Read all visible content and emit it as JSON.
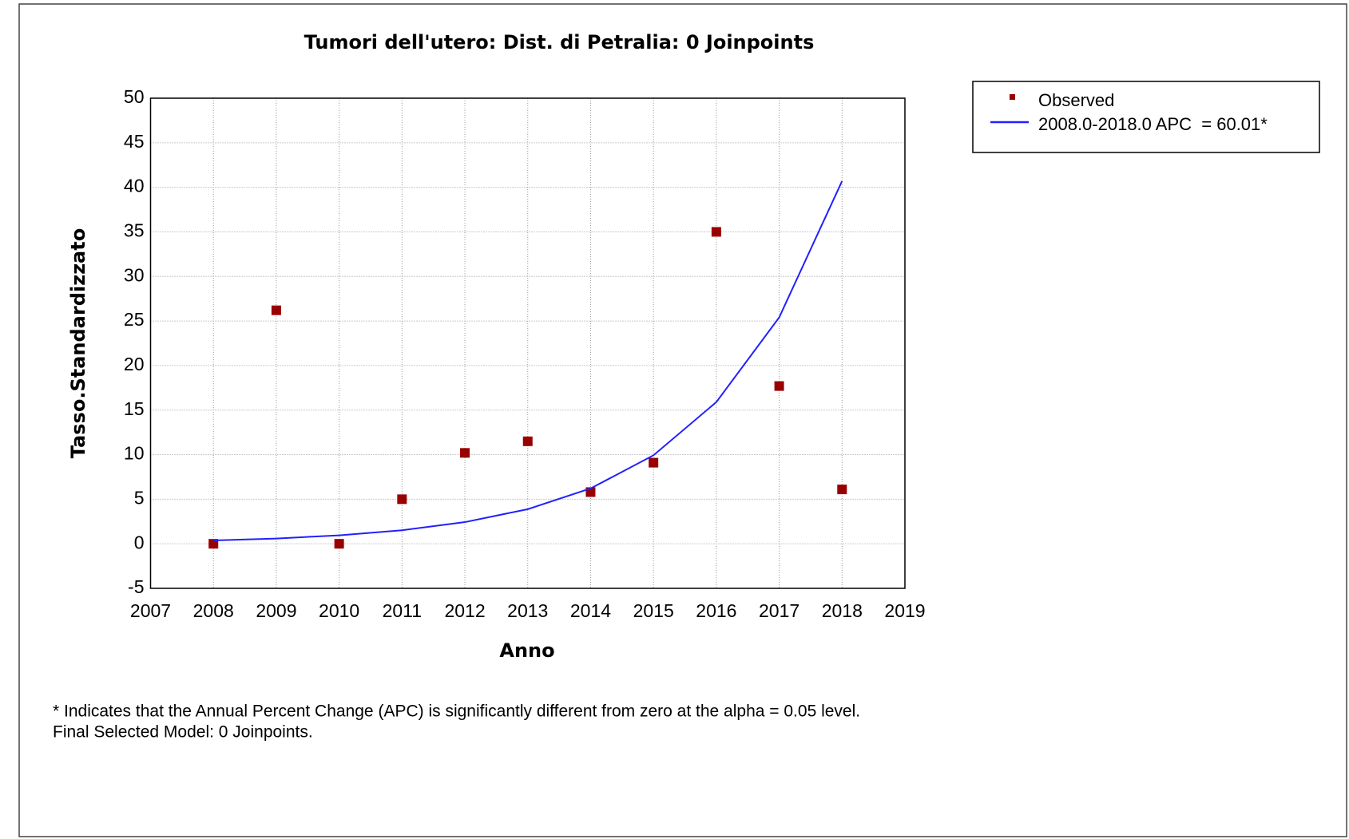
{
  "chart_data": {
    "type": "line",
    "title": "Tumori dell'utero: Dist. di Petralia: 0 Joinpoints",
    "xlabel": "Anno",
    "ylabel": "Tasso.Standardizzato",
    "x": [
      2008,
      2009,
      2010,
      2011,
      2012,
      2013,
      2014,
      2015,
      2016,
      2017,
      2018
    ],
    "series": [
      {
        "name": "Observed",
        "type": "scatter",
        "color": "#990000",
        "values": [
          0,
          26.2,
          0,
          5.0,
          10.2,
          11.5,
          5.8,
          9.1,
          35.0,
          17.7,
          6.1
        ]
      },
      {
        "name": "2008.0-2018.0 APC  = 60.01*",
        "type": "line",
        "color": "#2020ff",
        "values": [
          0.37,
          0.59,
          0.95,
          1.52,
          2.43,
          3.88,
          6.21,
          9.93,
          15.9,
          25.4,
          40.7
        ]
      }
    ],
    "xlim": [
      2007,
      2019
    ],
    "xticks": [
      2007,
      2008,
      2009,
      2010,
      2011,
      2012,
      2013,
      2014,
      2015,
      2016,
      2017,
      2018,
      2019
    ],
    "ylim": [
      -5,
      50
    ],
    "yticks": [
      -5,
      0,
      5,
      10,
      15,
      20,
      25,
      30,
      35,
      40,
      45,
      50
    ],
    "grid": true,
    "legend": "outside-right",
    "notes": [
      "* Indicates that the Annual Percent Change (APC) is significantly different from zero at the alpha = 0.05 level.",
      "Final Selected Model: 0 Joinpoints."
    ]
  }
}
